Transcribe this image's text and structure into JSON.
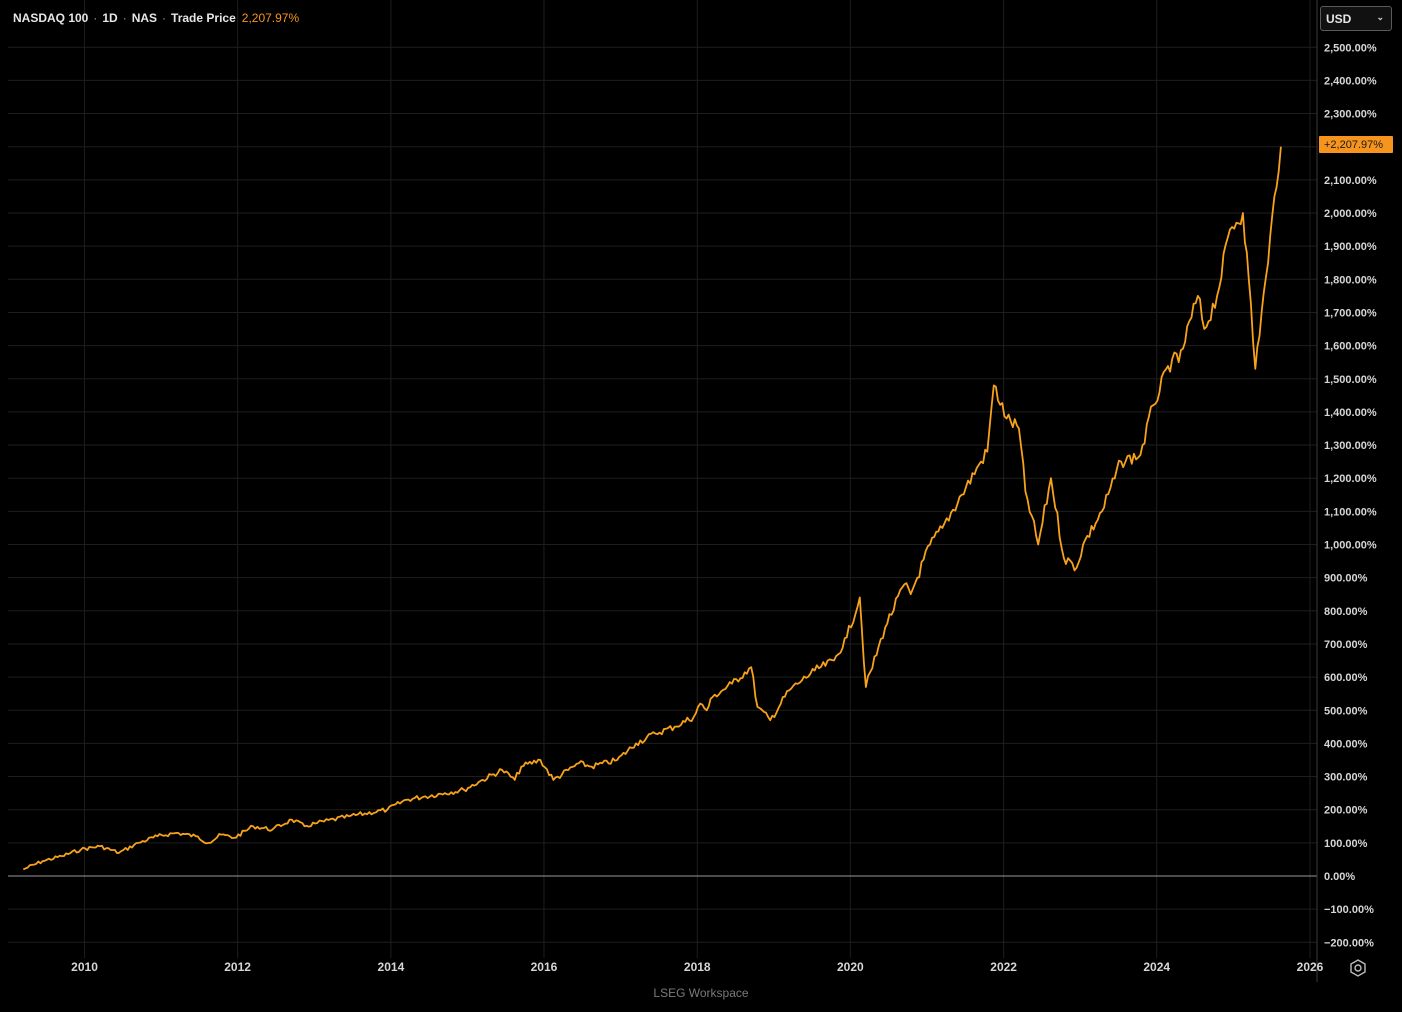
{
  "legend": {
    "symbol": "NASDAQ 100",
    "interval": "1D",
    "exchange": "NAS",
    "field": "Trade Price",
    "value": "2,207.97%"
  },
  "currency_select": {
    "selected": "USD"
  },
  "last_value_badge": "+2,207.97%",
  "footer": "LSEG Workspace",
  "settings_icon": "gear-icon",
  "colors": {
    "line": "#f7a21b",
    "badge": "#f7941d",
    "zero_line": "#9a9a9a",
    "grid": "#1e1e1e",
    "background": "#000000"
  },
  "chart_data": {
    "type": "line",
    "series": [
      {
        "x": [
          "2009-03",
          "2009-06",
          "2009-09",
          "2009-12",
          "2010-03",
          "2010-06",
          "2010-09",
          "2010-12",
          "2011-03",
          "2011-06",
          "2011-08",
          "2011-10",
          "2011-12",
          "2012-03",
          "2012-06",
          "2012-09",
          "2012-11",
          "2013-01",
          "2013-06",
          "2013-12",
          "2014-03",
          "2014-06",
          "2014-09",
          "2014-12",
          "2015-03",
          "2015-06",
          "2015-08",
          "2015-09",
          "2015-12",
          "2016-02",
          "2016-06",
          "2016-08",
          "2016-12",
          "2017-03",
          "2017-06",
          "2017-09",
          "2017-12",
          "2018-01",
          "2018-02",
          "2018-03",
          "2018-06",
          "2018-09",
          "2018-10",
          "2018-12",
          "2019-03",
          "2019-05",
          "2019-07",
          "2019-10",
          "2019-12",
          "2020-02",
          "2020-03",
          "2020-06",
          "2020-09",
          "2020-10",
          "2021-01",
          "2021-03",
          "2021-06",
          "2021-09",
          "2021-10",
          "2021-11",
          "2022-01",
          "2022-03",
          "2022-04",
          "2022-06",
          "2022-08",
          "2022-10",
          "2022-12",
          "2023-01",
          "2023-04",
          "2023-07",
          "2023-10",
          "2023-12",
          "2024-03",
          "2024-04",
          "2024-07",
          "2024-08",
          "2024-10",
          "2024-12",
          "2025-02",
          "2025-03",
          "2025-04",
          "2025-05",
          "2025-06",
          "2025-07",
          "2025-08"
        ],
        "values": [
          20,
          45,
          60,
          80,
          90,
          70,
          100,
          120,
          130,
          120,
          100,
          125,
          115,
          150,
          140,
          170,
          150,
          160,
          180,
          200,
          230,
          240,
          250,
          260,
          290,
          320,
          290,
          330,
          350,
          290,
          340,
          330,
          350,
          400,
          430,
          450,
          480,
          520,
          500,
          540,
          580,
          630,
          510,
          470,
          560,
          590,
          620,
          650,
          720,
          840,
          570,
          750,
          880,
          850,
          1000,
          1050,
          1150,
          1250,
          1280,
          1480,
          1380,
          1350,
          1160,
          1000,
          1200,
          960,
          930,
          1000,
          1100,
          1250,
          1270,
          1420,
          1560,
          1550,
          1750,
          1650,
          1750,
          1950,
          2000,
          1800,
          1530,
          1700,
          1850,
          2050,
          2200
        ]
      }
    ],
    "xlim": [
      "2009-01-01",
      "2026-01-01"
    ],
    "xticks": [
      "2010",
      "2012",
      "2014",
      "2016",
      "2018",
      "2020",
      "2022",
      "2024",
      "2026"
    ],
    "ylim": [
      -250,
      2580
    ],
    "yticks": [
      "-200.00%",
      "-100.00%",
      "0.00%",
      "100.00%",
      "200.00%",
      "300.00%",
      "400.00%",
      "500.00%",
      "600.00%",
      "700.00%",
      "800.00%",
      "900.00%",
      "1,000.00%",
      "1,100.00%",
      "1,200.00%",
      "1,300.00%",
      "1,400.00%",
      "1,500.00%",
      "1,600.00%",
      "1,700.00%",
      "1,800.00%",
      "1,900.00%",
      "2,000.00%",
      "2,100.00%",
      "2,200.00%",
      "2,300.00%",
      "2,400.00%",
      "2,500.00%"
    ],
    "grid": true,
    "axis_position": "right"
  }
}
